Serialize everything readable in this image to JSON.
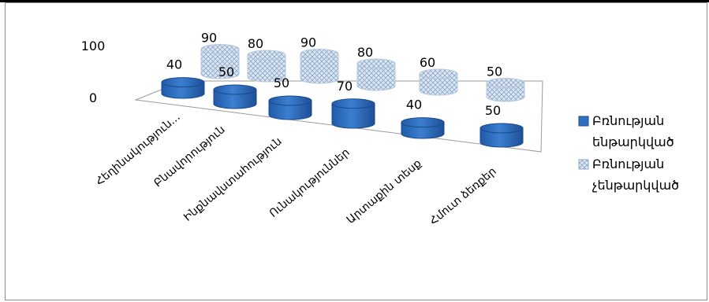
{
  "chart_data": {
    "type": "bar",
    "variant": "3d-clustered-column",
    "categories": [
      "Հեղինակություն...",
      "Բնավորություն",
      "Ինքնավստահություն",
      "Ունակություններ",
      "Արտաքին տեսք",
      "Հմուտ ձեռքեր"
    ],
    "series": [
      {
        "name": "Բռնության ենթարկված",
        "values": [
          40,
          50,
          50,
          70,
          40,
          50
        ],
        "color": "#2e6fc2"
      },
      {
        "name": "Բռնության չենթարկված",
        "values": [
          90,
          80,
          90,
          80,
          60,
          50
        ],
        "pattern": "crosshatch",
        "color": "#c5d6ea"
      }
    ],
    "yticks": [
      "0",
      "100"
    ],
    "ylim": [
      0,
      100
    ],
    "grid": false,
    "legend": "right"
  }
}
